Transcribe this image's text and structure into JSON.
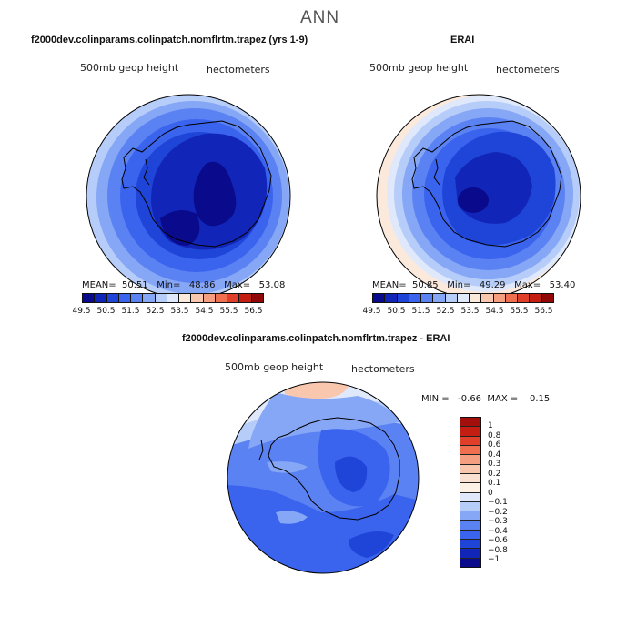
{
  "figure": {
    "title": "ANN"
  },
  "panel_model": {
    "title": "f2000dev.colinparams.colinpatch.nomflrtm.trapez (yrs 1-9)",
    "variable": "500mb geop height",
    "units": "hectometers",
    "mean_label": "MEAN=",
    "mean": "50.51",
    "min_label": "Min=",
    "min": "48.86",
    "max_label": "Max=",
    "max": "53.08"
  },
  "panel_obs": {
    "title": "ERAI",
    "variable": "500mb geop height",
    "units": "hectometers",
    "mean_label": "MEAN=",
    "mean": "50.85",
    "min_label": "Min=",
    "min": "49.29",
    "max_label": "Max=",
    "max": "53.40"
  },
  "panel_diff": {
    "title": "f2000dev.colinparams.colinpatch.nomflrtm.trapez - ERAI",
    "variable": "500mb geop height",
    "units": "hectometers",
    "min_label": "MIN =",
    "min": "-0.66",
    "max_label": "MAX =",
    "max": "0.15"
  },
  "colorbar_abs": {
    "labels": [
      "49.5",
      "50.5",
      "51.5",
      "52.5",
      "53.5",
      "54.5",
      "55.5",
      "56.5"
    ],
    "colors": [
      "#0a0a8c",
      "#1126b8",
      "#1f45d8",
      "#3a63ee",
      "#5b82f2",
      "#86a6f6",
      "#b6cdf9",
      "#dfe9fb",
      "#fbe9dc",
      "#f9c6ae",
      "#f59e80",
      "#ef6f4f",
      "#e0402a",
      "#c41d12",
      "#900808"
    ]
  },
  "colorbar_diff": {
    "labels": [
      "1",
      "0.8",
      "0.6",
      "0.4",
      "0.3",
      "0.2",
      "0.1",
      "0",
      "−0.1",
      "−0.2",
      "−0.3",
      "−0.4",
      "−0.6",
      "−0.8",
      "−1"
    ],
    "colors": [
      "#a3100c",
      "#c41d12",
      "#e0402a",
      "#ef6f4f",
      "#f59e80",
      "#f9c6ae",
      "#fbe1d1",
      "#fdf1e6",
      "#dfe9fb",
      "#b6cdf9",
      "#86a6f6",
      "#5b82f2",
      "#3a63ee",
      "#1f45d8",
      "#1126b8",
      "#0a0a8c"
    ]
  },
  "colors": {
    "land_outline": "#000000"
  }
}
